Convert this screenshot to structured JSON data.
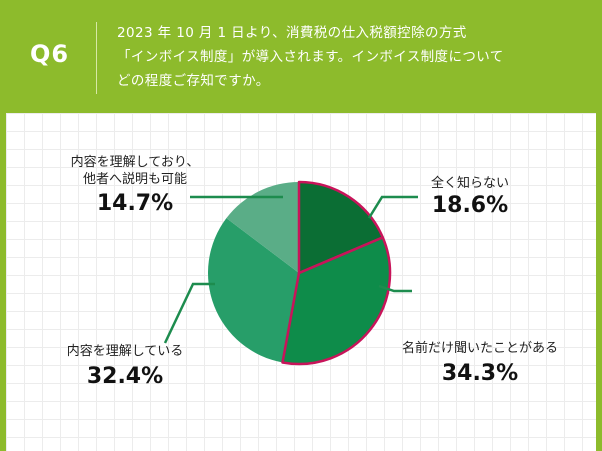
{
  "header": {
    "qnum": "Q6",
    "question_lines": [
      "2023 年 10 月 1 日より、消費税の仕入税額控除の方式",
      "「インボイス制度」が導入されます。インボイス制度について",
      "どの程度ご存知ですか。"
    ]
  },
  "chart_data": {
    "type": "pie",
    "slices": [
      {
        "label": "全く知らない",
        "label_lines": [
          "全く知らない"
        ],
        "value": 18.6,
        "value_text": "18.6%",
        "color": "#0b6e34"
      },
      {
        "label": "名前だけ聞いたことがある",
        "label_lines": [
          "名前だけ聞いたことがある"
        ],
        "value": 34.3,
        "value_text": "34.3%",
        "color": "#0e8c4a"
      },
      {
        "label": "内容を理解している",
        "label_lines": [
          "内容を理解している"
        ],
        "value": 32.4,
        "value_text": "32.4%",
        "color": "#279e69"
      },
      {
        "label": "内容を理解しており、他者へ説明も可能",
        "label_lines": [
          "内容を理解しており、",
          "他者へ説明も可能"
        ],
        "value": 14.7,
        "value_text": "14.7%",
        "color": "#5aad87"
      }
    ],
    "highlight_color": "#c8145a",
    "leader_color": "#1d8c4e",
    "start_angle": "12 o'clock",
    "direction": "clockwise"
  }
}
